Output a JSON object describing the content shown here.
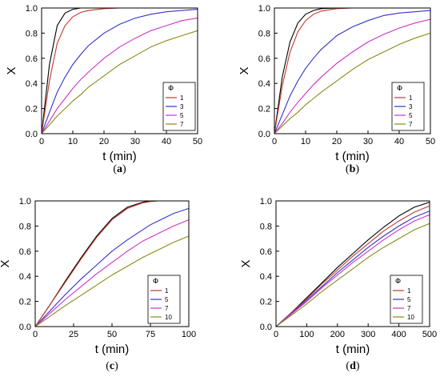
{
  "figure": {
    "panels": [
      {
        "label": "a",
        "caption": "(a)"
      },
      {
        "label": "b",
        "caption": "(b)"
      },
      {
        "label": "c",
        "caption": "(c)"
      },
      {
        "label": "d",
        "caption": "(d)"
      }
    ]
  },
  "chart_data": [
    {
      "type": "line",
      "panel": "(a)",
      "xlabel": "t (min)",
      "ylabel": "X",
      "xlim": [
        0,
        50
      ],
      "ylim": [
        0,
        1.0
      ],
      "xticks": [
        0,
        10,
        20,
        30,
        40,
        50
      ],
      "yticks": [
        0.0,
        0.2,
        0.4,
        0.6,
        0.8,
        1.0
      ],
      "legend": {
        "title": "Φ",
        "position": "right"
      },
      "x": [
        0,
        2.5,
        5,
        7.5,
        10,
        12.5,
        15,
        20,
        25,
        30,
        35,
        40,
        45,
        50
      ],
      "series": [
        {
          "name": "",
          "color": "#000000",
          "values": [
            0,
            0.55,
            0.86,
            0.96,
            0.99,
            1.0,
            1.0,
            1.0,
            1.0,
            1.0,
            1.0,
            1.0,
            1.0,
            1.0
          ]
        },
        {
          "name": "1",
          "color": "#c0392b",
          "values": [
            0,
            0.42,
            0.72,
            0.86,
            0.93,
            0.965,
            0.98,
            0.995,
            1.0,
            1.0,
            1.0,
            1.0,
            1.0,
            1.0
          ]
        },
        {
          "name": "3",
          "color": "#3333cc",
          "values": [
            0,
            0.17,
            0.33,
            0.45,
            0.55,
            0.63,
            0.7,
            0.8,
            0.87,
            0.92,
            0.95,
            0.97,
            0.98,
            0.99
          ]
        },
        {
          "name": "5",
          "color": "#cc33cc",
          "values": [
            0,
            0.1,
            0.2,
            0.28,
            0.36,
            0.43,
            0.49,
            0.6,
            0.69,
            0.76,
            0.82,
            0.86,
            0.9,
            0.92
          ]
        },
        {
          "name": "7",
          "color": "#8a8a1a",
          "values": [
            0,
            0.07,
            0.14,
            0.2,
            0.26,
            0.31,
            0.37,
            0.46,
            0.55,
            0.62,
            0.69,
            0.74,
            0.78,
            0.82
          ]
        }
      ]
    },
    {
      "type": "line",
      "panel": "(b)",
      "xlabel": "t (min)",
      "ylabel": "X",
      "xlim": [
        0,
        50
      ],
      "ylim": [
        0,
        1.0
      ],
      "xticks": [
        0,
        10,
        20,
        30,
        40,
        50
      ],
      "yticks": [
        0.0,
        0.2,
        0.4,
        0.6,
        0.8,
        1.0
      ],
      "legend": {
        "title": "Φ",
        "position": "right"
      },
      "x": [
        0,
        2.5,
        5,
        7.5,
        10,
        12.5,
        15,
        20,
        25,
        30,
        35,
        40,
        45,
        50
      ],
      "series": [
        {
          "name": "",
          "color": "#000000",
          "values": [
            0,
            0.45,
            0.73,
            0.88,
            0.95,
            0.98,
            0.995,
            1.0,
            1.0,
            1.0,
            1.0,
            1.0,
            1.0,
            1.0
          ]
        },
        {
          "name": "1",
          "color": "#c0392b",
          "values": [
            0,
            0.38,
            0.65,
            0.81,
            0.9,
            0.95,
            0.975,
            0.995,
            1.0,
            1.0,
            1.0,
            1.0,
            1.0,
            1.0
          ]
        },
        {
          "name": "3",
          "color": "#3333cc",
          "values": [
            0,
            0.15,
            0.3,
            0.42,
            0.52,
            0.6,
            0.67,
            0.78,
            0.85,
            0.9,
            0.94,
            0.96,
            0.97,
            0.98
          ]
        },
        {
          "name": "5",
          "color": "#cc33cc",
          "values": [
            0,
            0.08,
            0.17,
            0.25,
            0.32,
            0.39,
            0.45,
            0.56,
            0.65,
            0.73,
            0.79,
            0.84,
            0.88,
            0.91
          ]
        },
        {
          "name": "7",
          "color": "#8a8a1a",
          "values": [
            0,
            0.06,
            0.12,
            0.17,
            0.23,
            0.28,
            0.33,
            0.42,
            0.51,
            0.59,
            0.65,
            0.71,
            0.76,
            0.8
          ]
        }
      ]
    },
    {
      "type": "line",
      "panel": "(c)",
      "xlabel": "t (min)",
      "ylabel": "X",
      "xlim": [
        0,
        100
      ],
      "ylim": [
        0,
        1.0
      ],
      "xticks": [
        0,
        25,
        50,
        75,
        100
      ],
      "yticks": [
        0.0,
        0.2,
        0.4,
        0.6,
        0.8,
        1.0
      ],
      "legend": {
        "title": "Φ",
        "position": "bottom-right"
      },
      "x": [
        0,
        10,
        20,
        30,
        40,
        50,
        60,
        70,
        75,
        80,
        90,
        100
      ],
      "series": [
        {
          "name": "",
          "color": "#000000",
          "values": [
            0,
            0.18,
            0.37,
            0.55,
            0.72,
            0.86,
            0.95,
            0.99,
            1.0,
            1.0,
            1.0,
            1.0
          ]
        },
        {
          "name": "1",
          "color": "#c0392b",
          "values": [
            0,
            0.18,
            0.36,
            0.54,
            0.71,
            0.85,
            0.94,
            0.985,
            0.995,
            1.0,
            1.0,
            1.0
          ]
        },
        {
          "name": "5",
          "color": "#3333cc",
          "values": [
            0,
            0.13,
            0.26,
            0.38,
            0.49,
            0.6,
            0.69,
            0.77,
            0.81,
            0.84,
            0.9,
            0.94
          ]
        },
        {
          "name": "7",
          "color": "#cc33cc",
          "values": [
            0,
            0.11,
            0.22,
            0.32,
            0.42,
            0.51,
            0.6,
            0.68,
            0.71,
            0.74,
            0.8,
            0.85
          ]
        },
        {
          "name": "10",
          "color": "#8a8a1a",
          "values": [
            0,
            0.085,
            0.17,
            0.25,
            0.33,
            0.41,
            0.48,
            0.55,
            0.58,
            0.61,
            0.67,
            0.72
          ]
        }
      ]
    },
    {
      "type": "line",
      "panel": "(d)",
      "xlabel": "t (min)",
      "ylabel": "X",
      "xlim": [
        0,
        500
      ],
      "ylim": [
        0,
        1.0
      ],
      "xticks": [
        0,
        100,
        200,
        300,
        400,
        500
      ],
      "yticks": [
        0.0,
        0.2,
        0.4,
        0.6,
        0.8,
        1.0
      ],
      "legend": {
        "title": "Φ",
        "position": "bottom-right"
      },
      "x": [
        0,
        50,
        100,
        150,
        200,
        250,
        300,
        350,
        400,
        450,
        500
      ],
      "series": [
        {
          "name": "",
          "color": "#000000",
          "values": [
            0,
            0.11,
            0.23,
            0.35,
            0.47,
            0.58,
            0.69,
            0.79,
            0.88,
            0.95,
            0.99
          ]
        },
        {
          "name": "1",
          "color": "#c0392b",
          "values": [
            0,
            0.11,
            0.22,
            0.34,
            0.45,
            0.56,
            0.66,
            0.76,
            0.84,
            0.91,
            0.96
          ]
        },
        {
          "name": "5",
          "color": "#3333cc",
          "values": [
            0,
            0.105,
            0.21,
            0.32,
            0.43,
            0.53,
            0.63,
            0.72,
            0.8,
            0.87,
            0.92
          ]
        },
        {
          "name": "7",
          "color": "#cc33cc",
          "values": [
            0,
            0.1,
            0.2,
            0.31,
            0.41,
            0.51,
            0.6,
            0.69,
            0.77,
            0.84,
            0.89
          ]
        },
        {
          "name": "10",
          "color": "#8a8a1a",
          "values": [
            0,
            0.09,
            0.18,
            0.28,
            0.37,
            0.46,
            0.55,
            0.63,
            0.7,
            0.77,
            0.82
          ]
        }
      ]
    }
  ]
}
